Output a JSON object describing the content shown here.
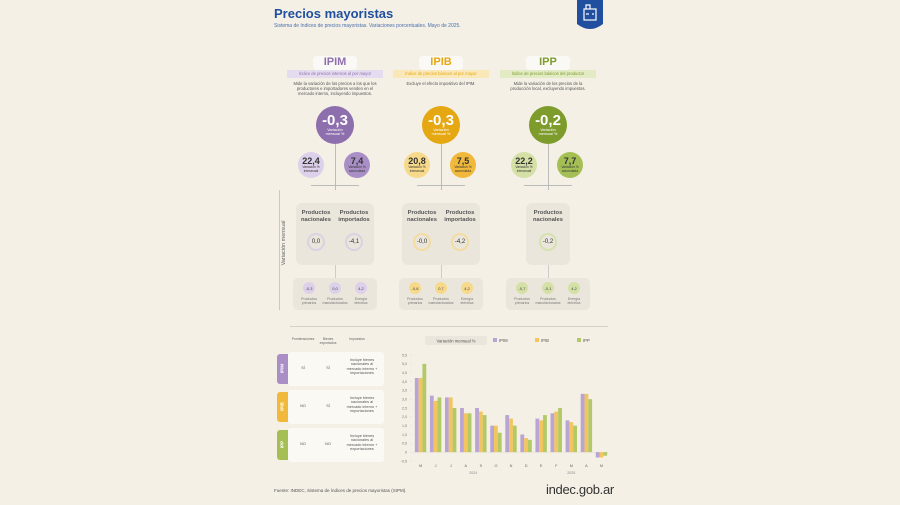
{
  "header": {
    "title": "Precios mayoristas",
    "subtitle": "Sistema de índices de precios mayoristas. Variaciones porcentuales. Mayo de 2025."
  },
  "indices": [
    {
      "name": "IPIM",
      "full_name": "Índice de precios internos al por mayor",
      "description": "Mide la variación de los precios a los que los productores e importadores venden en el mercado interno, incluyendo impuestos.",
      "monthly": {
        "value": "-0,3",
        "label": "Variación mensual %"
      },
      "yearly": {
        "value": "22,4",
        "label": "Variación % interanual"
      },
      "accumulated": {
        "value": "7,4",
        "label": "Variación % acumulada"
      },
      "products": [
        {
          "name": "Productos nacionales",
          "value": "0,0"
        },
        {
          "name": "Productos importados",
          "value": "-4,1"
        }
      ],
      "breakdown": [
        {
          "name": "Productos primarios",
          "value": "-0,3"
        },
        {
          "name": "Productos manufacturados",
          "value": "0,0"
        },
        {
          "name": "Energía eléctrica",
          "value": "4,2"
        }
      ]
    },
    {
      "name": "IPIB",
      "full_name": "Índice de precios básicos al por mayor",
      "description": "Excluye el efecto impositivo del IPIM.",
      "monthly": {
        "value": "-0,3",
        "label": "Variación mensual %"
      },
      "yearly": {
        "value": "20,8",
        "label": "Variación % interanual"
      },
      "accumulated": {
        "value": "7,5",
        "label": "Variación % acumulada"
      },
      "products": [
        {
          "name": "Productos nacionales",
          "value": "-0,0"
        },
        {
          "name": "Productos importados",
          "value": "-4,2"
        }
      ],
      "breakdown": [
        {
          "name": "Productos primarios",
          "value": "-0,8"
        },
        {
          "name": "Productos manufacturados",
          "value": "0,7"
        },
        {
          "name": "Energía eléctrica",
          "value": "4,2"
        }
      ]
    },
    {
      "name": "IPP",
      "full_name": "Índice de precios básicos del productor",
      "description": "Mide la variación de los precios de la producción local, excluyendo impuestos.",
      "monthly": {
        "value": "-0,2",
        "label": "Variación mensual %"
      },
      "yearly": {
        "value": "22,2",
        "label": "Variación % interanual"
      },
      "accumulated": {
        "value": "7,7",
        "label": "Variación % acumulada"
      },
      "products": [
        {
          "name": "Productos nacionales",
          "value": "-0,2"
        }
      ],
      "breakdown": [
        {
          "name": "Productos primarios",
          "value": "-0,7"
        },
        {
          "name": "Productos manufacturados",
          "value": "-0,1"
        },
        {
          "name": "Energía eléctrica",
          "value": "4,2"
        }
      ]
    }
  ],
  "side_label": "Variación mensual",
  "table": {
    "headers": [
      "Ponderaciones",
      "Bienes exportados",
      "Impuestos"
    ],
    "rows": [
      {
        "label": "IPIM",
        "cells": [
          "SÍ",
          "SÍ",
          "Incluye bienes nacionales al mercado interno + importaciones"
        ]
      },
      {
        "label": "IPIB",
        "cells": [
          "NO",
          "SÍ",
          "Incluye bienes nacionales al mercado interno + importaciones"
        ]
      },
      {
        "label": "IPP",
        "cells": [
          "NO",
          "NO",
          "Incluye bienes nacionales al mercado interno + exportaciones"
        ]
      }
    ]
  },
  "chart_data": {
    "type": "bar",
    "legend_title": "Variación mensual %",
    "categories": [
      "M",
      "J",
      "J",
      "A",
      "S",
      "O",
      "N",
      "D",
      "E",
      "F",
      "M",
      "A",
      "M"
    ],
    "year_labels": [
      "2024",
      "2025"
    ],
    "series": [
      {
        "name": "IPIM",
        "color": "#b9a5d3",
        "values": [
          4.2,
          3.2,
          3.1,
          2.5,
          2.5,
          1.5,
          2.1,
          1.0,
          1.9,
          2.2,
          1.8,
          3.3,
          -0.3
        ]
      },
      {
        "name": "IPIB",
        "color": "#f2c55e",
        "values": [
          4.2,
          2.9,
          3.1,
          2.2,
          2.3,
          1.5,
          1.9,
          0.8,
          1.8,
          2.3,
          1.7,
          3.3,
          -0.3
        ]
      },
      {
        "name": "IPP",
        "color": "#b3c867",
        "values": [
          5.0,
          3.1,
          2.5,
          2.2,
          2.1,
          1.1,
          1.5,
          0.7,
          2.1,
          2.5,
          1.5,
          3.0,
          -0.2
        ]
      }
    ],
    "ylim": [
      -0.5,
      5.5
    ],
    "yticks": [
      {
        "value": -0.5,
        "label": "-0,5"
      },
      0,
      {
        "value": 0.5,
        "label": "0,5"
      },
      {
        "value": 1,
        "label": "1,0"
      },
      {
        "value": 1.5,
        "label": "1,5"
      },
      {
        "value": 2,
        "label": "2,0"
      },
      {
        "value": 2.5,
        "label": "2,5"
      },
      {
        "value": 3,
        "label": "3,0"
      },
      {
        "value": 3.5,
        "label": "3,5"
      },
      {
        "value": 4,
        "label": "4,0"
      },
      {
        "value": 4.5,
        "label": "4,5"
      },
      {
        "value": 5,
        "label": "5,0"
      },
      {
        "value": 5.5,
        "label": "5,5"
      }
    ],
    "grid": false
  },
  "footer": {
    "source": "Fuente: INDEC, Sistema de índices de precios mayoristas (SIPM).",
    "logo": "indec.gob.ar"
  }
}
